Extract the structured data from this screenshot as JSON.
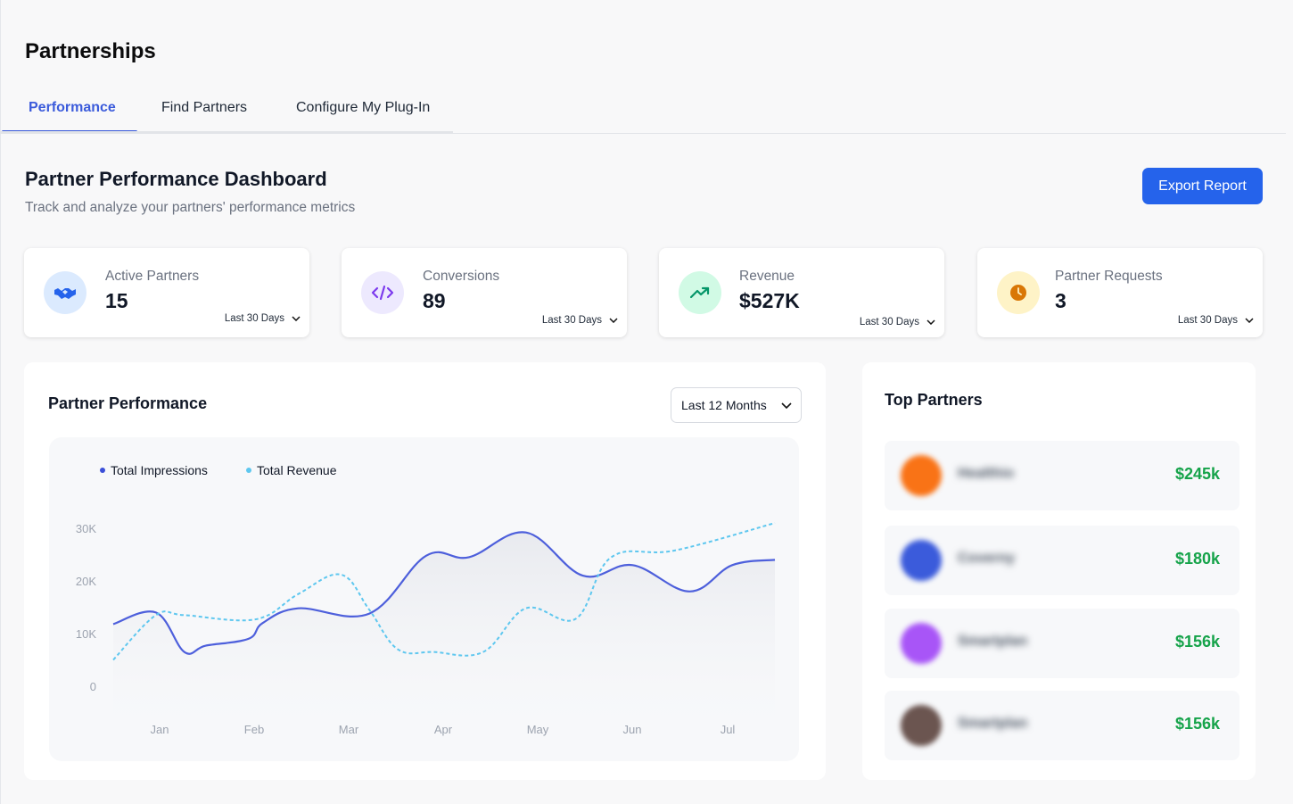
{
  "page": {
    "title": "Partnerships"
  },
  "tabs": [
    {
      "label": "Performance",
      "active": true
    },
    {
      "label": "Find Partners",
      "active": false
    },
    {
      "label": "Configure My Plug-In",
      "active": false
    }
  ],
  "dashboard": {
    "title": "Partner Performance Dashboard",
    "subtitle": "Track and analyze your partners' performance metrics",
    "export_label": "Export Report"
  },
  "stats": [
    {
      "label": "Active Partners",
      "value": "15",
      "period": "Last 30 Days",
      "icon": "handshake-icon",
      "icon_color": "#2563eb",
      "icon_bg": "#dbeafe"
    },
    {
      "label": "Conversions",
      "value": "89",
      "period": "Last 30 Days",
      "icon": "code-icon",
      "icon_color": "#7c3aed",
      "icon_bg": "#ede9fe"
    },
    {
      "label": "Revenue",
      "value": "$527K",
      "period": "Last 30 Days",
      "icon": "trending-up-icon",
      "icon_color": "#059669",
      "icon_bg": "#d1fae5"
    },
    {
      "label": "Partner Requests",
      "value": "3",
      "period": "Last 30 Days",
      "icon": "clock-icon",
      "icon_color": "#d97706",
      "icon_bg": "#fef3c7"
    }
  ],
  "performance": {
    "title": "Partner Performance",
    "range_label": "Last 12 Months"
  },
  "chart_data": {
    "type": "line",
    "x": [
      "Jan",
      "Feb",
      "Mar",
      "Apr",
      "May",
      "Jun",
      "Jul"
    ],
    "yticks": [
      "30K",
      "20K",
      "10K",
      "0"
    ],
    "ylim": [
      0,
      30000
    ],
    "legend": "top-left",
    "series": [
      {
        "name": "Total Impressions",
        "color": "#3b4fd8",
        "style": "solid",
        "points": [
          [
            0.0,
            11800
          ],
          [
            0.6,
            14000
          ],
          [
            1.0,
            6500
          ],
          [
            1.3,
            7700
          ],
          [
            1.9,
            9000
          ],
          [
            2.1,
            12000
          ],
          [
            2.6,
            14800
          ],
          [
            3.6,
            13800
          ],
          [
            4.4,
            24800
          ],
          [
            5.0,
            24500
          ],
          [
            5.8,
            29200
          ],
          [
            6.6,
            21000
          ],
          [
            7.3,
            23000
          ],
          [
            8.1,
            18000
          ],
          [
            8.7,
            23000
          ],
          [
            9.3,
            24000
          ]
        ]
      },
      {
        "name": "Total Revenue",
        "color": "#5ec7ef",
        "style": "dashed",
        "points": [
          [
            0.0,
            5000
          ],
          [
            0.6,
            13500
          ],
          [
            1.0,
            13500
          ],
          [
            2.0,
            12700
          ],
          [
            2.6,
            17500
          ],
          [
            3.2,
            21200
          ],
          [
            3.6,
            14500
          ],
          [
            4.0,
            7000
          ],
          [
            4.5,
            6500
          ],
          [
            5.2,
            6500
          ],
          [
            5.8,
            14800
          ],
          [
            6.5,
            12800
          ],
          [
            7.0,
            24500
          ],
          [
            7.9,
            25800
          ],
          [
            9.3,
            31000
          ]
        ]
      }
    ]
  },
  "top_partners": {
    "title": "Top Partners",
    "items": [
      {
        "name": "Healthio",
        "amount": "$245k",
        "avatar_color": "#f97316"
      },
      {
        "name": "Coverny",
        "amount": "$180k",
        "avatar_color": "#3b5bdb"
      },
      {
        "name": "Smartplan",
        "amount": "$156k",
        "avatar_color": "#a855f7"
      },
      {
        "name": "Smartplan",
        "amount": "$156k",
        "avatar_color": "#6b5550"
      }
    ]
  }
}
